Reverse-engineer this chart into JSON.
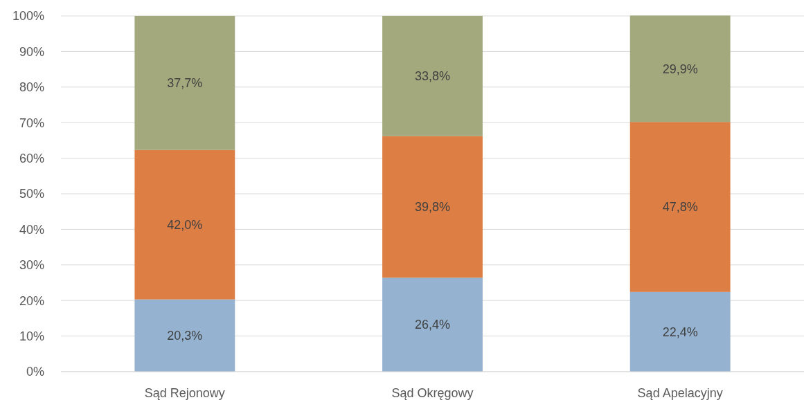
{
  "chart_data": {
    "type": "bar",
    "stacked": true,
    "categories": [
      "Sąd Rejonowy",
      "Sąd Okręgowy",
      "Sąd Apelacyjny"
    ],
    "series": [
      {
        "color": "#95b3d0",
        "values": [
          20.3,
          26.4,
          22.4
        ],
        "value_labels": [
          "20,3%",
          "26,4%",
          "22,4%"
        ]
      },
      {
        "color": "#dd7f45",
        "values": [
          42.0,
          39.8,
          47.8
        ],
        "value_labels": [
          "42,0%",
          "39,8%",
          "47,8%"
        ]
      },
      {
        "color": "#a3a97d",
        "values": [
          37.7,
          33.8,
          29.9
        ],
        "value_labels": [
          "37,7%",
          "33,8%",
          "29,9%"
        ]
      }
    ],
    "ylim": [
      0,
      100
    ],
    "yticks": [
      {
        "value": 0,
        "label": "0%"
      },
      {
        "value": 10,
        "label": "10%"
      },
      {
        "value": 20,
        "label": "20%"
      },
      {
        "value": 30,
        "label": "30%"
      },
      {
        "value": 40,
        "label": "40%"
      },
      {
        "value": 50,
        "label": "50%"
      },
      {
        "value": 60,
        "label": "60%"
      },
      {
        "value": 70,
        "label": "70%"
      },
      {
        "value": 80,
        "label": "80%"
      },
      {
        "value": 90,
        "label": "90%"
      },
      {
        "value": 100,
        "label": "100%"
      }
    ],
    "grid": "y"
  }
}
